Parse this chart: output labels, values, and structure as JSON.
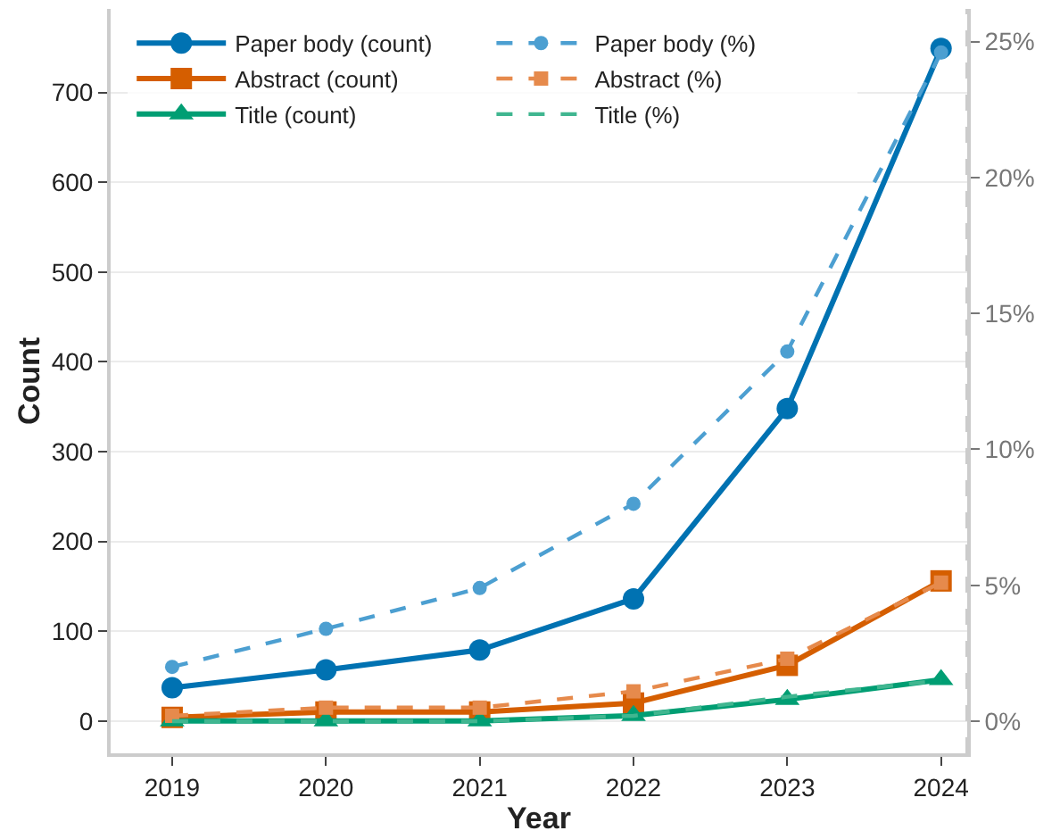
{
  "chart_data": {
    "type": "line",
    "xlabel": "Year",
    "ylabel": "Count",
    "x": [
      2019,
      2020,
      2021,
      2022,
      2023,
      2024
    ],
    "series": [
      {
        "name": "Paper body (count)",
        "color": "#0072b2",
        "marker": "circle",
        "line_style": "solid",
        "values": [
          37,
          57,
          79,
          136,
          348,
          749
        ]
      },
      {
        "name": "Paper body (%)",
        "color": "#4c9fd1",
        "marker": "circle",
        "line_style": "dashed",
        "axis": "y2",
        "values": [
          2.0,
          3.4,
          4.9,
          8.0,
          13.6,
          24.6
        ]
      },
      {
        "name": "Abstract (count)",
        "color": "#d55e00",
        "marker": "square",
        "line_style": "solid",
        "values": [
          4,
          10,
          10,
          20,
          62,
          156
        ]
      },
      {
        "name": "Abstract (%)",
        "color": "#e68a4c",
        "marker": "square",
        "line_style": "dashed",
        "axis": "y2",
        "values": [
          0.2,
          0.5,
          0.5,
          1.1,
          2.3,
          5.1
        ]
      },
      {
        "name": "Title (count)",
        "color": "#009e73",
        "marker": "triangle",
        "line_style": "solid",
        "values": [
          0,
          0,
          0,
          6,
          24,
          46
        ]
      },
      {
        "name": "Title (%)",
        "color": "#40b690",
        "marker": "none",
        "line_style": "dashed",
        "axis": "y2",
        "values": [
          0,
          0,
          0,
          0.2,
          0.9,
          1.5
        ]
      }
    ],
    "xlim": [
      2018.6,
      2024.17
    ],
    "xticks": [
      2019,
      2020,
      2021,
      2022,
      2023,
      2024
    ],
    "ylim": [
      -36,
      793
    ],
    "yticks": [
      0,
      100,
      200,
      300,
      400,
      500,
      600,
      700
    ],
    "y2lim": [
      -1.18,
      26.2
    ],
    "y2ticks": [
      {
        "value": 0,
        "label": "0%"
      },
      {
        "value": 5,
        "label": "5%"
      },
      {
        "value": 10,
        "label": "10%"
      },
      {
        "value": 15,
        "label": "15%"
      },
      {
        "value": 20,
        "label": "20%"
      },
      {
        "value": 25,
        "label": "25%"
      }
    ],
    "grid": "y",
    "legend": "top left"
  }
}
